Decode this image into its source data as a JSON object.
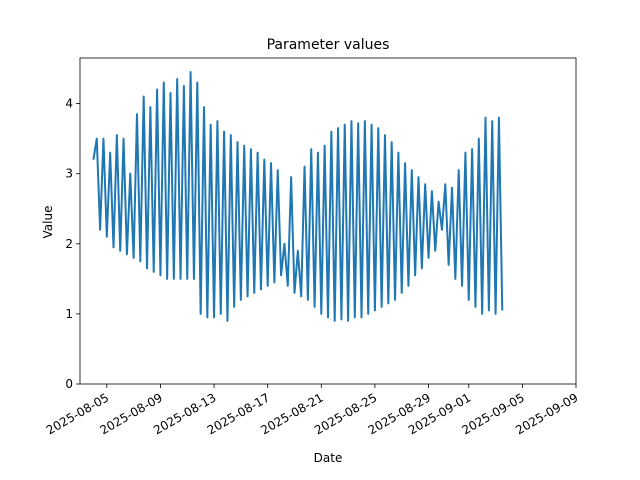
{
  "chart_data": {
    "type": "line",
    "title": "Parameter values",
    "xlabel": "Date",
    "ylabel": "Value",
    "xlim": [
      "2025-08-03",
      "2025-09-09"
    ],
    "ylim": [
      0,
      4.65
    ],
    "grid": false,
    "x_tick_labels": [
      "2025-08-05",
      "2025-08-09",
      "2025-08-13",
      "2025-08-17",
      "2025-08-21",
      "2025-08-25",
      "2025-08-29",
      "2025-09-01",
      "2025-09-05",
      "2025-09-09"
    ],
    "y_tick_labels": [
      "0",
      "1",
      "2",
      "3",
      "4"
    ],
    "series": [
      {
        "color": "#1f77b4",
        "points": [
          [
            "2025-08-04 00:00",
            3.2
          ],
          [
            "2025-08-04 06:00",
            3.5
          ],
          [
            "2025-08-04 12:00",
            2.2
          ],
          [
            "2025-08-04 18:00",
            3.5
          ],
          [
            "2025-08-05 00:00",
            2.1
          ],
          [
            "2025-08-05 06:00",
            3.3
          ],
          [
            "2025-08-05 12:00",
            1.95
          ],
          [
            "2025-08-05 18:00",
            3.55
          ],
          [
            "2025-08-06 00:00",
            1.9
          ],
          [
            "2025-08-06 06:00",
            3.5
          ],
          [
            "2025-08-06 12:00",
            1.85
          ],
          [
            "2025-08-06 18:00",
            3.0
          ],
          [
            "2025-08-07 00:00",
            1.8
          ],
          [
            "2025-08-07 06:00",
            3.85
          ],
          [
            "2025-08-07 12:00",
            1.75
          ],
          [
            "2025-08-07 18:00",
            4.1
          ],
          [
            "2025-08-08 00:00",
            1.65
          ],
          [
            "2025-08-08 06:00",
            3.95
          ],
          [
            "2025-08-08 12:00",
            1.6
          ],
          [
            "2025-08-08 18:00",
            4.2
          ],
          [
            "2025-08-09 00:00",
            1.55
          ],
          [
            "2025-08-09 06:00",
            4.3
          ],
          [
            "2025-08-09 12:00",
            1.5
          ],
          [
            "2025-08-09 18:00",
            4.15
          ],
          [
            "2025-08-10 00:00",
            1.5
          ],
          [
            "2025-08-10 06:00",
            4.35
          ],
          [
            "2025-08-10 12:00",
            1.5
          ],
          [
            "2025-08-10 18:00",
            4.25
          ],
          [
            "2025-08-11 00:00",
            1.5
          ],
          [
            "2025-08-11 06:00",
            4.45
          ],
          [
            "2025-08-11 12:00",
            1.5
          ],
          [
            "2025-08-11 18:00",
            4.3
          ],
          [
            "2025-08-12 00:00",
            1.0
          ],
          [
            "2025-08-12 06:00",
            3.95
          ],
          [
            "2025-08-12 12:00",
            0.95
          ],
          [
            "2025-08-12 18:00",
            3.7
          ],
          [
            "2025-08-13 00:00",
            0.95
          ],
          [
            "2025-08-13 06:00",
            3.75
          ],
          [
            "2025-08-13 12:00",
            1.0
          ],
          [
            "2025-08-13 18:00",
            3.6
          ],
          [
            "2025-08-14 00:00",
            0.9
          ],
          [
            "2025-08-14 06:00",
            3.55
          ],
          [
            "2025-08-14 12:00",
            1.1
          ],
          [
            "2025-08-14 18:00",
            3.45
          ],
          [
            "2025-08-15 00:00",
            1.2
          ],
          [
            "2025-08-15 06:00",
            3.4
          ],
          [
            "2025-08-15 12:00",
            1.25
          ],
          [
            "2025-08-15 18:00",
            3.35
          ],
          [
            "2025-08-16 00:00",
            1.3
          ],
          [
            "2025-08-16 06:00",
            3.3
          ],
          [
            "2025-08-16 12:00",
            1.35
          ],
          [
            "2025-08-16 18:00",
            3.2
          ],
          [
            "2025-08-17 00:00",
            1.4
          ],
          [
            "2025-08-17 06:00",
            3.15
          ],
          [
            "2025-08-17 12:00",
            1.45
          ],
          [
            "2025-08-17 18:00",
            3.05
          ],
          [
            "2025-08-18 00:00",
            1.55
          ],
          [
            "2025-08-18 06:00",
            2.0
          ],
          [
            "2025-08-18 12:00",
            1.4
          ],
          [
            "2025-08-18 18:00",
            2.95
          ],
          [
            "2025-08-19 00:00",
            1.3
          ],
          [
            "2025-08-19 06:00",
            1.9
          ],
          [
            "2025-08-19 12:00",
            1.25
          ],
          [
            "2025-08-19 18:00",
            3.1
          ],
          [
            "2025-08-20 00:00",
            1.2
          ],
          [
            "2025-08-20 06:00",
            3.35
          ],
          [
            "2025-08-20 12:00",
            1.1
          ],
          [
            "2025-08-20 18:00",
            3.3
          ],
          [
            "2025-08-21 00:00",
            1.0
          ],
          [
            "2025-08-21 06:00",
            3.4
          ],
          [
            "2025-08-21 12:00",
            0.95
          ],
          [
            "2025-08-21 18:00",
            3.6
          ],
          [
            "2025-08-22 00:00",
            0.9
          ],
          [
            "2025-08-22 06:00",
            3.65
          ],
          [
            "2025-08-22 12:00",
            0.92
          ],
          [
            "2025-08-22 18:00",
            3.7
          ],
          [
            "2025-08-23 00:00",
            0.9
          ],
          [
            "2025-08-23 06:00",
            3.75
          ],
          [
            "2025-08-23 12:00",
            0.95
          ],
          [
            "2025-08-23 18:00",
            3.72
          ],
          [
            "2025-08-24 00:00",
            0.95
          ],
          [
            "2025-08-24 06:00",
            3.75
          ],
          [
            "2025-08-24 12:00",
            1.0
          ],
          [
            "2025-08-24 18:00",
            3.7
          ],
          [
            "2025-08-25 00:00",
            1.05
          ],
          [
            "2025-08-25 06:00",
            3.65
          ],
          [
            "2025-08-25 12:00",
            1.1
          ],
          [
            "2025-08-25 18:00",
            3.55
          ],
          [
            "2025-08-26 00:00",
            1.15
          ],
          [
            "2025-08-26 06:00",
            3.45
          ],
          [
            "2025-08-26 12:00",
            1.2
          ],
          [
            "2025-08-26 18:00",
            3.3
          ],
          [
            "2025-08-27 00:00",
            1.3
          ],
          [
            "2025-08-27 06:00",
            3.15
          ],
          [
            "2025-08-27 12:00",
            1.4
          ],
          [
            "2025-08-27 18:00",
            3.05
          ],
          [
            "2025-08-28 00:00",
            1.55
          ],
          [
            "2025-08-28 06:00",
            2.95
          ],
          [
            "2025-08-28 12:00",
            1.65
          ],
          [
            "2025-08-28 18:00",
            2.85
          ],
          [
            "2025-08-29 00:00",
            1.8
          ],
          [
            "2025-08-29 06:00",
            2.75
          ],
          [
            "2025-08-29 12:00",
            1.9
          ],
          [
            "2025-08-29 18:00",
            2.6
          ],
          [
            "2025-08-30 00:00",
            2.2
          ],
          [
            "2025-08-30 06:00",
            2.85
          ],
          [
            "2025-08-30 12:00",
            1.7
          ],
          [
            "2025-08-30 18:00",
            2.8
          ],
          [
            "2025-08-31 00:00",
            1.5
          ],
          [
            "2025-08-31 06:00",
            3.05
          ],
          [
            "2025-08-31 12:00",
            1.4
          ],
          [
            "2025-08-31 18:00",
            3.3
          ],
          [
            "2025-09-01 00:00",
            1.2
          ],
          [
            "2025-09-01 06:00",
            3.35
          ],
          [
            "2025-09-01 12:00",
            1.1
          ],
          [
            "2025-09-01 18:00",
            3.5
          ],
          [
            "2025-09-02 00:00",
            1.0
          ],
          [
            "2025-09-02 06:00",
            3.8
          ],
          [
            "2025-09-02 12:00",
            1.05
          ],
          [
            "2025-09-02 18:00",
            3.75
          ],
          [
            "2025-09-03 00:00",
            1.0
          ],
          [
            "2025-09-03 06:00",
            3.8
          ],
          [
            "2025-09-03 12:00",
            1.05
          ]
        ]
      }
    ]
  }
}
